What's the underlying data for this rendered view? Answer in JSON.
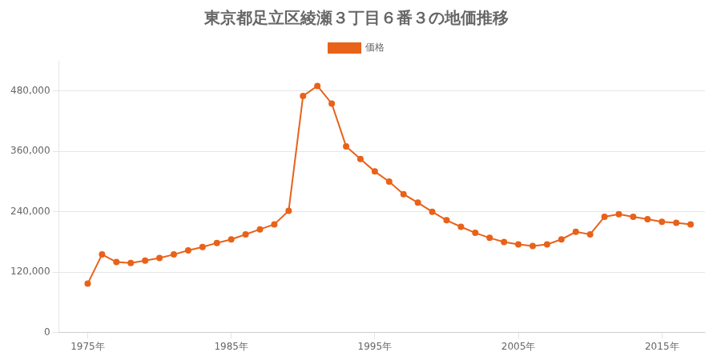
{
  "chart_data": {
    "type": "line",
    "title": "東京都足立区綾瀬３丁目６番３の地価推移",
    "x": [
      1975,
      1976,
      1977,
      1978,
      1979,
      1980,
      1981,
      1982,
      1983,
      1984,
      1985,
      1986,
      1987,
      1988,
      1989,
      1990,
      1991,
      1992,
      1993,
      1994,
      1995,
      1996,
      1997,
      1998,
      1999,
      2000,
      2001,
      2002,
      2003,
      2004,
      2005,
      2006,
      2007,
      2008,
      2009,
      2010,
      2011,
      2012,
      2013,
      2014,
      2015,
      2016,
      2017
    ],
    "series": [
      {
        "name": "価格",
        "color": "#e8621a",
        "marker": "circle",
        "values": [
          97000,
          155000,
          140000,
          138000,
          143000,
          148000,
          155000,
          163000,
          170000,
          178000,
          185000,
          195000,
          205000,
          215000,
          242000,
          470000,
          490000,
          455000,
          370000,
          345000,
          320000,
          300000,
          275000,
          258000,
          240000,
          223000,
          210000,
          198000,
          188000,
          180000,
          175000,
          172000,
          175000,
          185000,
          200000,
          195000,
          230000,
          235000,
          230000,
          225000,
          220000,
          218000,
          215000
        ]
      }
    ],
    "xlim": [
      1973,
      2018
    ],
    "xticks": [
      {
        "value": 1975,
        "label": "1975年"
      },
      {
        "value": 1985,
        "label": "1985年"
      },
      {
        "value": 1995,
        "label": "1995年"
      },
      {
        "value": 2005,
        "label": "2005年"
      },
      {
        "value": 2015,
        "label": "2015年"
      }
    ],
    "ylim": [
      0,
      540000
    ],
    "yticks": [
      0,
      {
        "value": 120000,
        "label": "120,000"
      },
      {
        "value": 240000,
        "label": "240,000"
      },
      {
        "value": 360000,
        "label": "360,000"
      },
      {
        "value": 480000,
        "label": "480,000"
      }
    ],
    "grid": "y",
    "legend": "top"
  }
}
